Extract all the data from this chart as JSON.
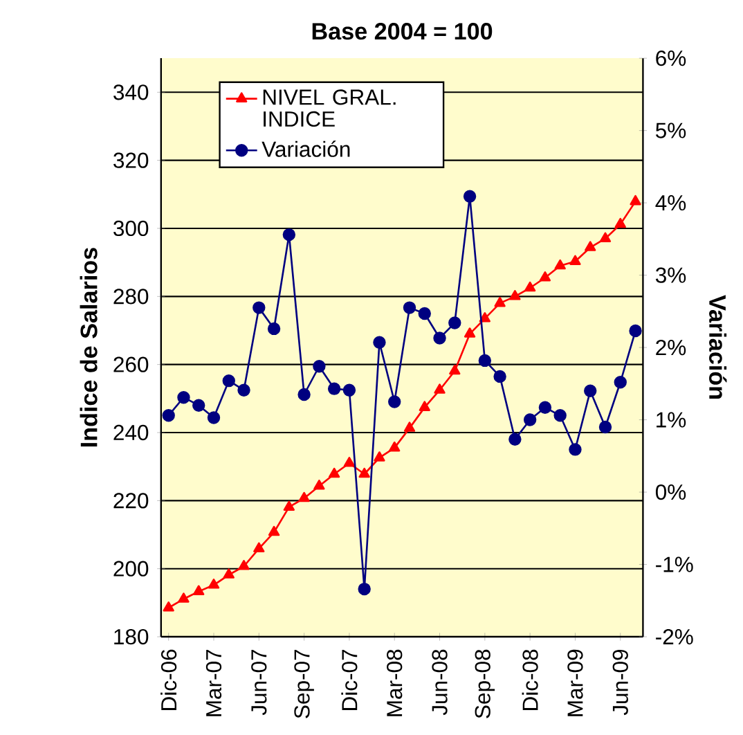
{
  "chart_data": {
    "type": "line",
    "title": "Base 2004 = 100",
    "ylabel": "Indice de Salarios",
    "y2label": "Variación",
    "categories": [
      "Dic-06",
      null,
      null,
      "Mar-07",
      null,
      null,
      "Jun-07",
      null,
      null,
      "Sep-07",
      null,
      null,
      "Dic-07",
      null,
      null,
      "Mar-08",
      null,
      null,
      "Jun-08",
      null,
      null,
      "Sep-08",
      null,
      null,
      "Dic-08",
      null,
      null,
      "Mar-09",
      null,
      null,
      "Jun-09",
      null
    ],
    "series": [
      {
        "name": "NIVEL GRAL. INDICE",
        "color": "#ff0000",
        "marker": "triangle",
        "values": [
          188.5,
          191.1,
          193.3,
          195.2,
          198.2,
          200.7,
          205.9,
          210.7,
          218.1,
          220.7,
          224.3,
          227.8,
          231.0,
          227.8,
          232.6,
          235.5,
          241.3,
          247.4,
          252.5,
          258.1,
          269.0,
          273.5,
          278.0,
          280.0,
          282.5,
          285.5,
          289.0,
          290.3,
          294.4,
          297.0,
          301.2,
          307.9
        ]
      },
      {
        "name": "Variación",
        "color": "#000080",
        "marker": "circle",
        "axis": "y2",
        "values": [
          1.06,
          1.31,
          1.2,
          1.03,
          1.54,
          1.41,
          2.55,
          2.26,
          3.56,
          1.35,
          1.74,
          1.43,
          1.41,
          -1.34,
          2.07,
          1.25,
          2.55,
          2.47,
          2.13,
          2.34,
          4.09,
          1.82,
          1.6,
          0.73,
          1.0,
          1.17,
          1.06,
          0.59,
          1.4,
          0.9,
          1.52,
          2.23
        ]
      }
    ],
    "ylim": [
      180,
      350
    ],
    "yticks": [
      180,
      200,
      220,
      240,
      260,
      280,
      300,
      320,
      340
    ],
    "y2lim": [
      -2,
      6
    ],
    "y2ticks": [
      {
        "value": -2,
        "label": "-2%"
      },
      {
        "value": -1,
        "label": "-1%"
      },
      {
        "value": 0,
        "label": "0%"
      },
      {
        "value": 1,
        "label": "1%"
      },
      {
        "value": 2,
        "label": "2%"
      },
      {
        "value": 3,
        "label": "3%"
      },
      {
        "value": 4,
        "label": "4%"
      },
      {
        "value": 5,
        "label": "5%"
      },
      {
        "value": 6,
        "label": "6%"
      }
    ],
    "grid": "y",
    "legend": "top left",
    "line_style": "solid"
  }
}
